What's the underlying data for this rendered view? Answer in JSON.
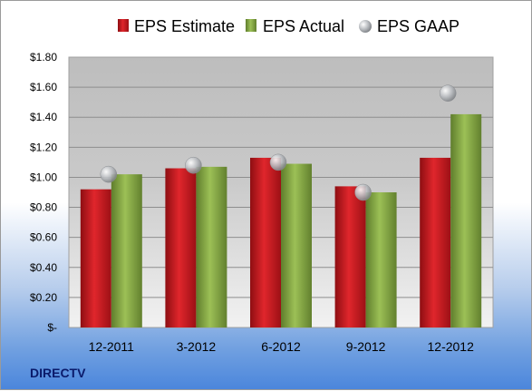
{
  "chart_data": {
    "type": "bar",
    "categories": [
      "12-2011",
      "3-2012",
      "6-2012",
      "9-2012",
      "12-2012"
    ],
    "series": [
      {
        "name": "EPS Estimate",
        "type": "bar",
        "values": [
          0.92,
          1.06,
          1.13,
          0.94,
          1.13
        ]
      },
      {
        "name": "EPS Actual",
        "type": "bar",
        "values": [
          1.02,
          1.07,
          1.09,
          0.9,
          1.42
        ]
      },
      {
        "name": "EPS GAAP",
        "type": "scatter",
        "values": [
          1.02,
          1.08,
          1.1,
          0.9,
          1.56
        ]
      }
    ],
    "yticks": [
      0,
      0.2,
      0.4,
      0.6,
      0.8,
      1.0,
      1.2,
      1.4,
      1.6,
      1.8
    ],
    "ytick_labels": [
      "$-",
      "$0.20",
      "$0.40",
      "$0.60",
      "$0.80",
      "$1.00",
      "$1.20",
      "$1.40",
      "$1.60",
      "$1.80"
    ],
    "ylim": [
      0,
      1.8
    ],
    "grid": true,
    "legend": "top",
    "title": "",
    "xlabel": "",
    "ylabel": "",
    "colors": {
      "estimate": "#c8161d",
      "actual": "#8cac4a",
      "gaap": "#b9bcc0"
    }
  },
  "footer": {
    "company": "DIRECTV"
  }
}
